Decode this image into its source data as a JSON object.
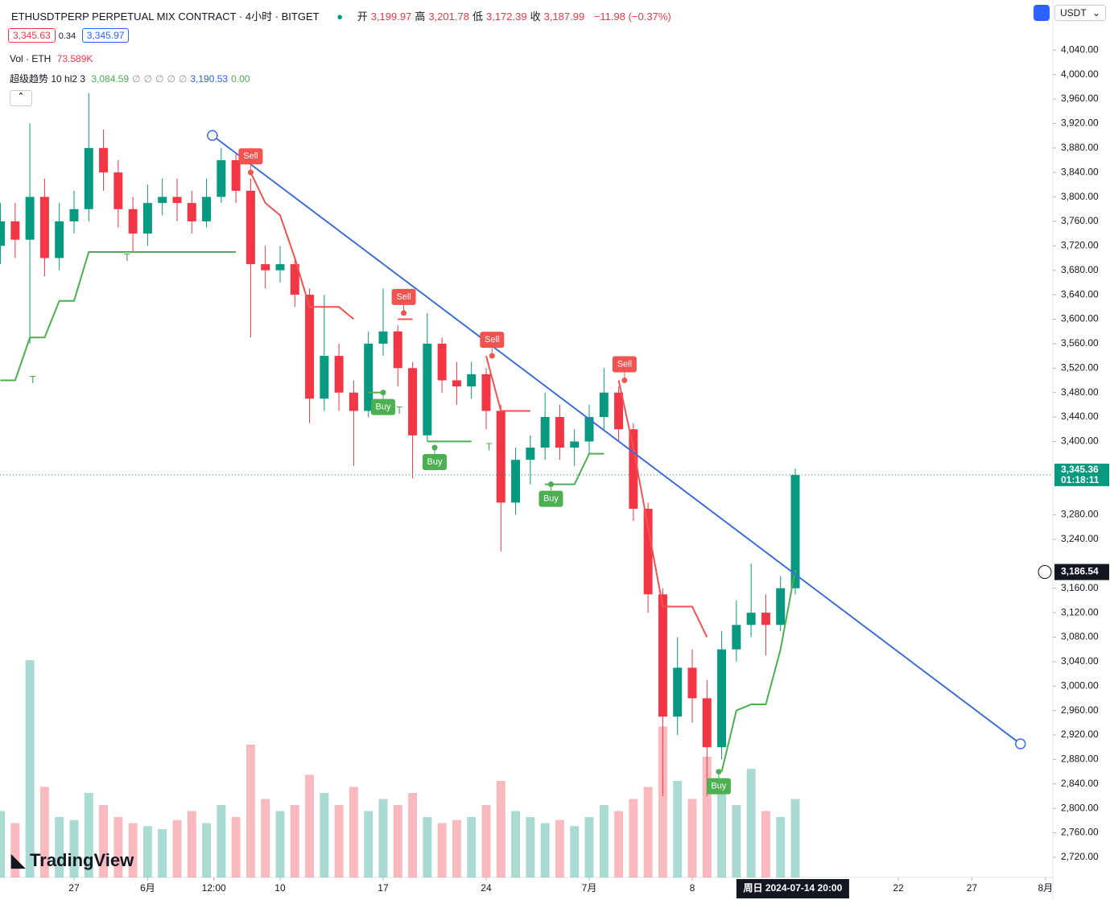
{
  "header": {
    "symbol": "ETHUSDTPERP PERPETUAL MIX CONTRACT · 4小时 · BITGET",
    "ohlc": [
      {
        "label": "开",
        "value": "3,199.97"
      },
      {
        "label": "高",
        "value": "3,201.78"
      },
      {
        "label": "低",
        "value": "3,172.39"
      },
      {
        "label": "收",
        "value": "3,187.99"
      }
    ],
    "change": "−11.98 (−0.37%)",
    "currency": "USDT"
  },
  "prices": {
    "bid": "3,345.63",
    "spread": "0.34",
    "ask": "3,345.97"
  },
  "volume_legend": {
    "name": "Vol · ETH",
    "value": "73.589K"
  },
  "indicator_legend": {
    "name": "超级趋势 10 hl2 3",
    "values": [
      "3,084.59",
      "∅",
      "∅",
      "∅",
      "∅",
      "∅",
      "3,190.53",
      "0.00"
    ]
  },
  "logo": "TradingView",
  "chart_data": {
    "type": "candlestick",
    "up_color": "#089981",
    "down_color": "#f23645",
    "grid": false,
    "xlim": [
      -5.03,
      66.5
    ],
    "ylim": [
      2687,
      4122
    ],
    "xticks": [
      {
        "value": 0,
        "label": "27"
      },
      {
        "value": 5,
        "label": "6月"
      },
      {
        "value": 9.5,
        "label": "12:00"
      },
      {
        "value": 14,
        "label": "10"
      },
      {
        "value": 21,
        "label": "17"
      },
      {
        "value": 28,
        "label": "24"
      },
      {
        "value": 35,
        "label": "7月"
      },
      {
        "value": 42,
        "label": "8"
      },
      {
        "value": 56,
        "label": "22"
      },
      {
        "value": 61,
        "label": "27"
      },
      {
        "value": 66,
        "label": "8月"
      }
    ],
    "yticks": [
      {
        "value": 2720,
        "label": "2,720.00"
      },
      {
        "value": 2760,
        "label": "2,760.00"
      },
      {
        "value": 2800,
        "label": "2,800.00"
      },
      {
        "value": 2840,
        "label": "2,840.00"
      },
      {
        "value": 2880,
        "label": "2,880.00"
      },
      {
        "value": 2920,
        "label": "2,920.00"
      },
      {
        "value": 2960,
        "label": "2,960.00"
      },
      {
        "value": 3000,
        "label": "3,000.00"
      },
      {
        "value": 3040,
        "label": "3,040.00"
      },
      {
        "value": 3080,
        "label": "3,080.00"
      },
      {
        "value": 3120,
        "label": "3,120.00"
      },
      {
        "value": 3160,
        "label": "3,160.00"
      },
      {
        "value": 3240,
        "label": "3,240.00"
      },
      {
        "value": 3280,
        "label": "3,280.00"
      },
      {
        "value": 3400,
        "label": "3,400.00"
      },
      {
        "value": 3440,
        "label": "3,440.00"
      },
      {
        "value": 3480,
        "label": "3,480.00"
      },
      {
        "value": 3520,
        "label": "3,520.00"
      },
      {
        "value": 3560,
        "label": "3,560.00"
      },
      {
        "value": 3600,
        "label": "3,600.00"
      },
      {
        "value": 3640,
        "label": "3,640.00"
      },
      {
        "value": 3680,
        "label": "3,680.00"
      },
      {
        "value": 3720,
        "label": "3,720.00"
      },
      {
        "value": 3760,
        "label": "3,760.00"
      },
      {
        "value": 3800,
        "label": "3,800.00"
      },
      {
        "value": 3840,
        "label": "3,840.00"
      },
      {
        "value": 3880,
        "label": "3,880.00"
      },
      {
        "value": 3920,
        "label": "3,920.00"
      },
      {
        "value": 3960,
        "label": "3,960.00"
      },
      {
        "value": 4000,
        "label": "4,000.00"
      },
      {
        "value": 4040,
        "label": "4,040.00"
      }
    ],
    "x": [
      -5,
      -4,
      -3,
      -2,
      -1,
      0,
      1,
      2,
      3,
      4,
      5,
      6,
      7,
      8,
      9,
      10,
      11,
      12,
      13,
      14,
      15,
      16,
      17,
      18,
      19,
      20,
      21,
      22,
      23,
      24,
      25,
      26,
      27,
      28,
      29,
      30,
      31,
      32,
      33,
      34,
      35,
      36,
      37,
      38,
      39,
      40,
      41,
      42,
      43,
      44,
      45,
      46,
      47,
      48,
      49
    ],
    "open": [
      3720,
      3760,
      3730,
      3800,
      3700,
      3760,
      3780,
      3880,
      3840,
      3780,
      3740,
      3790,
      3800,
      3790,
      3760,
      3800,
      3860,
      3810,
      3690,
      3680,
      3690,
      3640,
      3470,
      3540,
      3480,
      3450,
      3560,
      3580,
      3520,
      3410,
      3560,
      3500,
      3490,
      3510,
      3450,
      3300,
      3370,
      3390,
      3440,
      3390,
      3400,
      3440,
      3480,
      3420,
      3290,
      3150,
      2950,
      3030,
      2980,
      2900,
      3060,
      3100,
      3120,
      3100,
      3160
    ],
    "high": [
      3790,
      3790,
      3920,
      3830,
      3790,
      3810,
      3970,
      3910,
      3860,
      3800,
      3820,
      3830,
      3830,
      3810,
      3830,
      3880,
      3870,
      3830,
      3720,
      3720,
      3700,
      3650,
      3640,
      3560,
      3500,
      3580,
      3650,
      3590,
      3530,
      3610,
      3570,
      3530,
      3530,
      3520,
      3460,
      3390,
      3410,
      3480,
      3460,
      3420,
      3460,
      3520,
      3490,
      3430,
      3300,
      3160,
      3080,
      3060,
      3010,
      3090,
      3140,
      3200,
      3150,
      3180,
      3356
    ],
    "low": [
      3690,
      3700,
      3560,
      3670,
      3680,
      3740,
      3760,
      3810,
      3750,
      3710,
      3720,
      3770,
      3760,
      3740,
      3750,
      3790,
      3790,
      3570,
      3650,
      3660,
      3620,
      3430,
      3450,
      3450,
      3360,
      3440,
      3540,
      3490,
      3340,
      3400,
      3480,
      3460,
      3470,
      3420,
      3220,
      3280,
      3330,
      3370,
      3370,
      3360,
      3380,
      3420,
      3400,
      3270,
      3120,
      2820,
      2920,
      2940,
      2820,
      2880,
      3040,
      3080,
      3050,
      3090,
      3150
    ],
    "close": [
      3760,
      3730,
      3800,
      3700,
      3760,
      3780,
      3880,
      3840,
      3780,
      3740,
      3790,
      3800,
      3790,
      3760,
      3800,
      3860,
      3810,
      3690,
      3680,
      3690,
      3640,
      3470,
      3540,
      3480,
      3450,
      3560,
      3580,
      3520,
      3410,
      3560,
      3500,
      3490,
      3510,
      3450,
      3300,
      3370,
      3390,
      3440,
      3390,
      3400,
      3440,
      3480,
      3420,
      3290,
      3150,
      2950,
      3030,
      2980,
      2900,
      3060,
      3100,
      3120,
      3100,
      3160,
      3345.36
    ],
    "volume": [
      110,
      90,
      360,
      150,
      100,
      95,
      140,
      120,
      100,
      90,
      85,
      80,
      95,
      110,
      90,
      120,
      100,
      220,
      130,
      110,
      120,
      170,
      140,
      120,
      150,
      110,
      130,
      120,
      140,
      100,
      90,
      95,
      100,
      120,
      160,
      110,
      100,
      90,
      95,
      85,
      100,
      120,
      110,
      130,
      150,
      250,
      160,
      130,
      200,
      150,
      120,
      180,
      110,
      100,
      130
    ],
    "supertrend_up": [
      3500,
      3500,
      3570,
      3570,
      3630,
      3630,
      3710,
      3710,
      3710,
      3710,
      3710,
      3710,
      3710,
      3710,
      3710,
      3710,
      3710,
      null,
      null,
      null,
      null,
      null,
      null,
      null,
      null,
      3480,
      3480,
      null,
      null,
      3400,
      3400,
      3400,
      3400,
      null,
      null,
      null,
      null,
      3330,
      3330,
      3330,
      3380,
      3380,
      null,
      null,
      null,
      null,
      null,
      null,
      null,
      2860,
      2960,
      2970,
      2970,
      3060,
      3190
    ],
    "supertrend_down": [
      null,
      null,
      null,
      null,
      null,
      null,
      null,
      null,
      null,
      null,
      null,
      null,
      null,
      null,
      null,
      null,
      null,
      3840,
      3790,
      3770,
      3700,
      3620,
      3620,
      3620,
      3600,
      null,
      null,
      3600,
      3600,
      null,
      null,
      null,
      null,
      3540,
      3450,
      3450,
      3450,
      null,
      null,
      null,
      null,
      null,
      3500,
      3390,
      3260,
      3130,
      3130,
      3130,
      3080,
      null,
      null,
      null,
      null,
      null,
      null
    ],
    "up_line_color": "#4caf50",
    "down_line_color": "#f05350",
    "signals": [
      {
        "label": "Sell",
        "x": 12,
        "y": 3840
      },
      {
        "label": "Sell",
        "x": 22.4,
        "y": 3610
      },
      {
        "label": "Sell",
        "x": 28.4,
        "y": 3540
      },
      {
        "label": "Sell",
        "x": 37.4,
        "y": 3500
      },
      {
        "label": "Buy",
        "x": 21,
        "y": 3480
      },
      {
        "label": "Buy",
        "x": 24.5,
        "y": 3390
      },
      {
        "label": "Buy",
        "x": 32.4,
        "y": 3330
      },
      {
        "label": "Buy",
        "x": 43.8,
        "y": 2860
      }
    ],
    "markers": [
      {
        "label": "T",
        "x": -2.8,
        "y": 3500
      },
      {
        "label": "T",
        "x": 3.6,
        "y": 3700
      },
      {
        "label": "T",
        "x": 22.1,
        "y": 3450
      },
      {
        "label": "T",
        "x": 28.2,
        "y": 3390
      }
    ],
    "trendline": {
      "x": [
        9.4,
        64.3
      ],
      "y": [
        3900.5,
        2905.5
      ],
      "color": "#3d6fd8"
    },
    "last_price": {
      "value": 3345.36,
      "label": "3,345.36",
      "countdown": "01:18:11"
    },
    "crosshair": {
      "x": {
        "value": 48.83,
        "label": "周日 2024-07-14 20:00"
      },
      "y": {
        "value": 3186.54,
        "label": "3,186.54"
      }
    }
  }
}
